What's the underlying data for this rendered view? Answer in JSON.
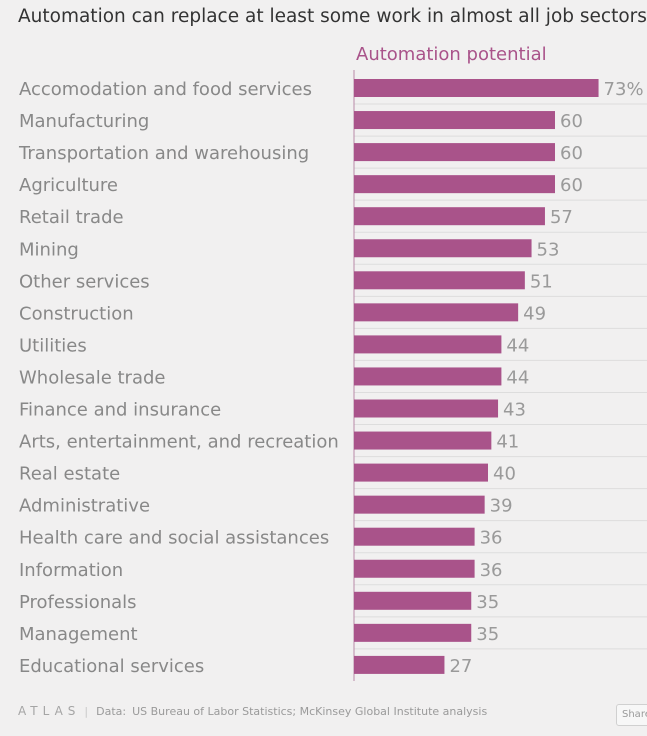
{
  "chart_data": {
    "type": "bar",
    "orientation": "horizontal",
    "title": "Automation can replace at least some work in almost all job sectors",
    "column_header": "Automation potential",
    "value_suffix_first": "%",
    "categories": [
      "Accomodation and food services",
      "Manufacturing",
      "Transportation and warehousing",
      "Agriculture",
      "Retail trade",
      "Mining",
      "Other services",
      "Construction",
      "Utilities",
      "Wholesale trade",
      "Finance and insurance",
      "Arts, entertainment, and recreation",
      "Real estate",
      "Administrative",
      "Health care and social assistances",
      "Information",
      "Professionals",
      "Management",
      "Educational services"
    ],
    "values": [
      73,
      60,
      60,
      60,
      57,
      53,
      51,
      49,
      44,
      44,
      43,
      41,
      40,
      39,
      36,
      36,
      35,
      35,
      27
    ],
    "xlim": [
      0,
      100
    ],
    "bar_color": "#a9538a",
    "label_color": "#888888",
    "value_color": "#9a9a9a",
    "header_color": "#a9538a",
    "grid": true
  },
  "footer": {
    "brand": "ATLAS",
    "separator": "|",
    "source_label": "Data:",
    "source": "US Bureau of Labor Statistics; McKinsey Global Institute analysis",
    "share_label": "Share"
  }
}
